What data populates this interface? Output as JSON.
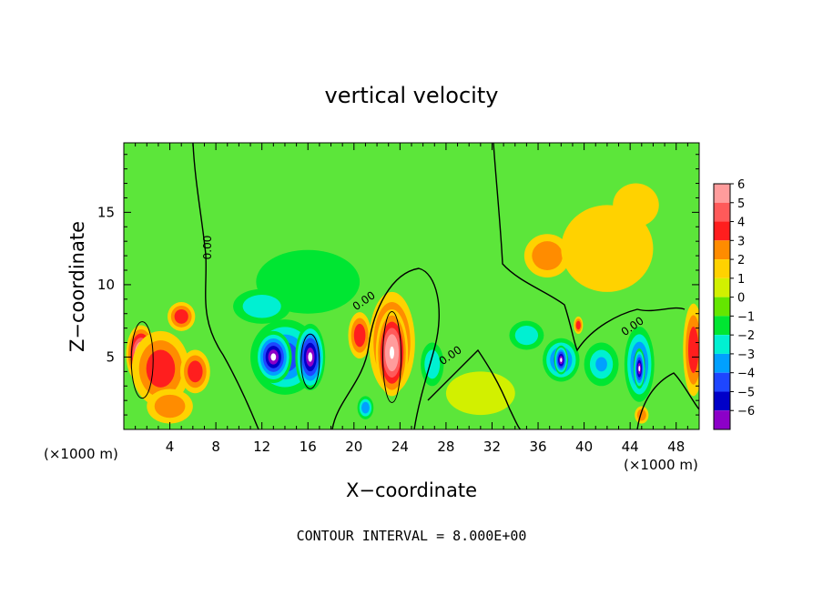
{
  "chart_data": {
    "type": "heatmap",
    "title": "vertical velocity",
    "xlabel": "X−coordinate",
    "ylabel": "Z−coordinate",
    "x_unit_left": "(×1000 m)",
    "x_unit_right": "(×1000 m)",
    "footer": "CONTOUR INTERVAL = 8.000E+00",
    "xlim": [
      0,
      50
    ],
    "ylim": [
      0,
      19.8
    ],
    "x_ticks": [
      4,
      8,
      12,
      16,
      20,
      24,
      28,
      32,
      36,
      40,
      44,
      48
    ],
    "x_tick_labels": [
      "4",
      "8",
      "12",
      "16",
      "20",
      "24",
      "28",
      "32",
      "36",
      "40",
      "44",
      "48"
    ],
    "y_ticks": [
      5,
      10,
      15
    ],
    "y_tick_labels": [
      "5",
      "10",
      "15"
    ],
    "colorbar": {
      "levels": [
        6,
        5,
        4,
        3,
        2,
        1,
        0,
        -1,
        -2,
        -3,
        -4,
        -5,
        -6
      ],
      "labels": [
        "6",
        "5",
        "4",
        "3",
        "2",
        "1",
        "0",
        "−1",
        "−2",
        "−3",
        "−4",
        "−5",
        "−6"
      ],
      "colors": [
        "#ff9c9c",
        "#ff5a5a",
        "#ff1e1e",
        "#ff8c00",
        "#ffd200",
        "#d2f000",
        "#64e600",
        "#00e632",
        "#00f0d2",
        "#00a0ff",
        "#1e46ff",
        "#0000c8",
        "#8c00c8"
      ]
    },
    "background_color": "#5ce63a",
    "contour_labels": [
      "0.00",
      "0.00",
      "0.00",
      "0.00"
    ],
    "features": [
      {
        "x": 1.5,
        "z": 5.2,
        "value": 10,
        "rx": 1.3,
        "rz": 2.0
      },
      {
        "x": 3.2,
        "z": 4.2,
        "value": 4,
        "rx": 2.5,
        "rz": 2.6
      },
      {
        "x": 6.2,
        "z": 4.0,
        "value": 3.5,
        "rx": 1.3,
        "rz": 1.5
      },
      {
        "x": 5.0,
        "z": 7.8,
        "value": 3.2,
        "rx": 1.2,
        "rz": 1.0
      },
      {
        "x": 4.0,
        "z": 1.6,
        "value": 3,
        "rx": 2.0,
        "rz": 1.2
      },
      {
        "x": 14.0,
        "z": 5.0,
        "value": -4.6,
        "rx": 3.0,
        "rz": 2.6
      },
      {
        "x": 13.0,
        "z": 5.0,
        "value": -10,
        "rx": 1.6,
        "rz": 1.8
      },
      {
        "x": 16.2,
        "z": 5.0,
        "value": -10,
        "rx": 1.3,
        "rz": 2.3
      },
      {
        "x": 16.0,
        "z": 10.2,
        "value": -1.8,
        "rx": 4.5,
        "rz": 2.2
      },
      {
        "x": 12.0,
        "z": 8.5,
        "value": -2.5,
        "rx": 2.5,
        "rz": 1.2
      },
      {
        "x": 23.3,
        "z": 6.0,
        "value": 4.2,
        "rx": 2.0,
        "rz": 3.5
      },
      {
        "x": 23.3,
        "z": 5.3,
        "value": 10,
        "rx": 1.4,
        "rz": 3.0
      },
      {
        "x": 20.5,
        "z": 6.5,
        "value": 3.2,
        "rx": 1.0,
        "rz": 1.6
      },
      {
        "x": 26.8,
        "z": 4.5,
        "value": -2.2,
        "rx": 1.0,
        "rz": 1.5
      },
      {
        "x": 21.0,
        "z": 1.5,
        "value": -3.5,
        "rx": 0.7,
        "rz": 0.8
      },
      {
        "x": 36.8,
        "z": 12.0,
        "value": 2.8,
        "rx": 2.0,
        "rz": 1.5
      },
      {
        "x": 42.0,
        "z": 12.5,
        "value": 1.7,
        "rx": 4.0,
        "rz": 3.0
      },
      {
        "x": 44.5,
        "z": 15.5,
        "value": 1.4,
        "rx": 2.0,
        "rz": 1.5
      },
      {
        "x": 38.0,
        "z": 4.8,
        "value": -4.6,
        "rx": 1.6,
        "rz": 1.5
      },
      {
        "x": 38.0,
        "z": 4.8,
        "value": -10,
        "rx": 0.6,
        "rz": 1.0
      },
      {
        "x": 44.8,
        "z": 4.5,
        "value": -4.6,
        "rx": 1.3,
        "rz": 2.6
      },
      {
        "x": 44.8,
        "z": 4.2,
        "value": -10,
        "rx": 0.5,
        "rz": 1.4
      },
      {
        "x": 41.5,
        "z": 4.5,
        "value": -3.0,
        "rx": 1.5,
        "rz": 1.5
      },
      {
        "x": 35.0,
        "z": 6.5,
        "value": -2.5,
        "rx": 1.5,
        "rz": 1.0
      },
      {
        "x": 39.5,
        "z": 7.2,
        "value": 4,
        "rx": 0.4,
        "rz": 0.6
      },
      {
        "x": 49.8,
        "z": 5.5,
        "value": 10,
        "rx": 0.6,
        "rz": 2.5
      },
      {
        "x": 49.5,
        "z": 5.5,
        "value": 4,
        "rx": 0.9,
        "rz": 3.2
      },
      {
        "x": 45.0,
        "z": 1.0,
        "value": 3,
        "rx": 0.6,
        "rz": 0.6
      },
      {
        "x": 31.0,
        "z": 2.5,
        "value": 1,
        "rx": 3.0,
        "rz": 1.5
      }
    ]
  }
}
